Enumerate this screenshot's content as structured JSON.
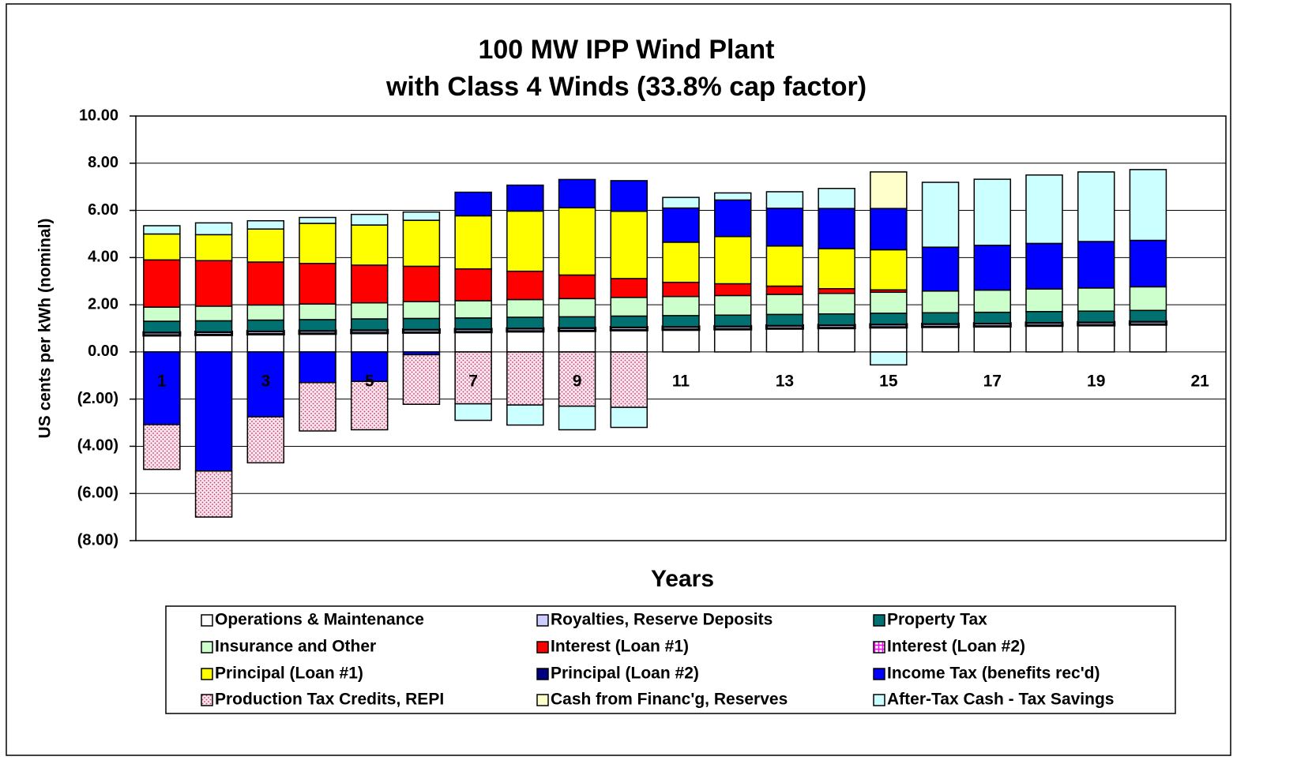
{
  "chart_data": {
    "type": "stacked-bar",
    "title": "100 MW IPP Wind Plant",
    "subtitle": "with Class 4 Winds (33.8% cap factor)",
    "y_label": "US cents per kWh (nominal)",
    "x_label": "Years",
    "categories": [
      "1",
      null,
      "3",
      null,
      "5",
      null,
      "7",
      null,
      "9",
      null,
      "11",
      null,
      "13",
      null,
      "15",
      null,
      "17",
      null,
      "19",
      null,
      "21"
    ],
    "ylim": [
      -8,
      10
    ],
    "yticks": [
      {
        "value": -8,
        "label": "(8.00)"
      },
      {
        "value": -6,
        "label": "(6.00)"
      },
      {
        "value": -4,
        "label": "(4.00)"
      },
      {
        "value": -2,
        "label": "(2.00)"
      },
      {
        "value": 0,
        "label": "0.00"
      },
      {
        "value": 2,
        "label": "2.00"
      },
      {
        "value": 4,
        "label": "4.00"
      },
      {
        "value": 6,
        "label": "6.00"
      },
      {
        "value": 8,
        "label": "8.00"
      },
      {
        "value": 10,
        "label": "10.00"
      }
    ],
    "grid": true,
    "legend": "bottom",
    "series": [
      {
        "name": "Operations & Maintenance",
        "color": "#ffffff",
        "values": [
          0.7,
          0.72,
          0.75,
          0.77,
          0.8,
          0.82,
          0.84,
          0.87,
          0.89,
          0.92,
          0.94,
          0.96,
          0.99,
          1.01,
          1.04,
          1.06,
          1.08,
          1.11,
          1.13,
          1.16,
          null
        ]
      },
      {
        "name": "Royalties, Reserve Deposits",
        "color": "#ccccff",
        "values": [
          0.13,
          0.13,
          0.13,
          0.13,
          0.13,
          0.13,
          0.13,
          0.13,
          0.13,
          0.13,
          0.13,
          0.13,
          0.13,
          0.13,
          0.13,
          0.13,
          0.13,
          0.13,
          0.13,
          0.13,
          null
        ]
      },
      {
        "name": "Property Tax",
        "color": "#007070",
        "values": [
          0.47,
          0.47,
          0.47,
          0.47,
          0.47,
          0.47,
          0.47,
          0.47,
          0.47,
          0.47,
          0.47,
          0.47,
          0.47,
          0.47,
          0.47,
          0.47,
          0.47,
          0.47,
          0.47,
          0.47,
          null
        ]
      },
      {
        "name": "Insurance and Other",
        "color": "#ccffcc",
        "values": [
          0.6,
          0.62,
          0.64,
          0.66,
          0.68,
          0.71,
          0.73,
          0.75,
          0.77,
          0.79,
          0.81,
          0.83,
          0.85,
          0.87,
          0.89,
          0.92,
          0.94,
          0.96,
          0.98,
          1.0,
          null
        ]
      },
      {
        "name": "Interest (Loan #1)",
        "color": "#ff0000",
        "values": [
          2.0,
          1.93,
          1.82,
          1.72,
          1.6,
          1.5,
          1.35,
          1.2,
          1.0,
          0.8,
          0.6,
          0.5,
          0.35,
          0.2,
          0.1,
          0,
          0,
          0,
          0,
          0,
          null
        ]
      },
      {
        "name": "Interest (Loan #2)",
        "color": "#ff00ff",
        "pattern": "grid",
        "values": [
          0,
          0,
          0,
          0,
          0,
          0,
          0,
          0,
          0,
          0,
          0,
          0,
          0,
          0,
          0,
          0,
          0,
          0,
          0,
          0,
          null
        ]
      },
      {
        "name": "Principal (Loan #1)",
        "color": "#ffff00",
        "values": [
          1.1,
          1.1,
          1.4,
          1.7,
          1.7,
          1.95,
          2.25,
          2.55,
          2.85,
          2.85,
          1.7,
          2.0,
          1.7,
          1.7,
          1.7,
          0,
          0,
          0,
          0,
          0,
          null
        ]
      },
      {
        "name": "Principal (Loan #2)",
        "color": "#000080",
        "values": [
          0,
          0,
          0,
          0,
          0,
          0,
          0,
          0,
          0,
          0,
          0,
          0,
          0,
          0,
          0,
          0,
          0,
          0,
          0,
          0,
          null
        ]
      },
      {
        "name": "Income Tax (benefits rec'd)",
        "color": "#0000ff",
        "values": [
          -3.08,
          -5.05,
          -2.75,
          -1.3,
          -1.25,
          -0.12,
          1.0,
          1.1,
          1.2,
          1.3,
          1.45,
          1.55,
          1.6,
          1.7,
          1.75,
          1.86,
          1.9,
          1.93,
          1.97,
          1.97,
          null
        ]
      },
      {
        "name": "Production Tax Credits, REPI",
        "color": "#e080a0",
        "pattern": "dots",
        "values": [
          -1.9,
          -1.95,
          -1.95,
          -2.05,
          -2.05,
          -2.1,
          -2.2,
          -2.25,
          -2.3,
          -2.35,
          0,
          0,
          0,
          0,
          0,
          0,
          0,
          0,
          0,
          0,
          null
        ]
      },
      {
        "name": "Cash from Financ'g, Reserves",
        "color": "#ffffcc",
        "values": [
          0,
          0,
          0,
          0,
          0,
          0,
          0,
          0,
          0,
          0,
          0,
          0,
          0,
          0,
          1.55,
          0,
          0,
          0,
          0,
          0,
          null
        ]
      },
      {
        "name": "After-Tax Cash - Tax Savings",
        "color": "#ccffff",
        "values": [
          0.35,
          0.5,
          0.35,
          0.25,
          0.45,
          0.35,
          -0.7,
          -0.85,
          -1.0,
          -0.85,
          0.45,
          0.3,
          0.7,
          0.85,
          -0.55,
          2.75,
          2.8,
          2.9,
          2.95,
          3.0,
          null
        ]
      }
    ]
  }
}
